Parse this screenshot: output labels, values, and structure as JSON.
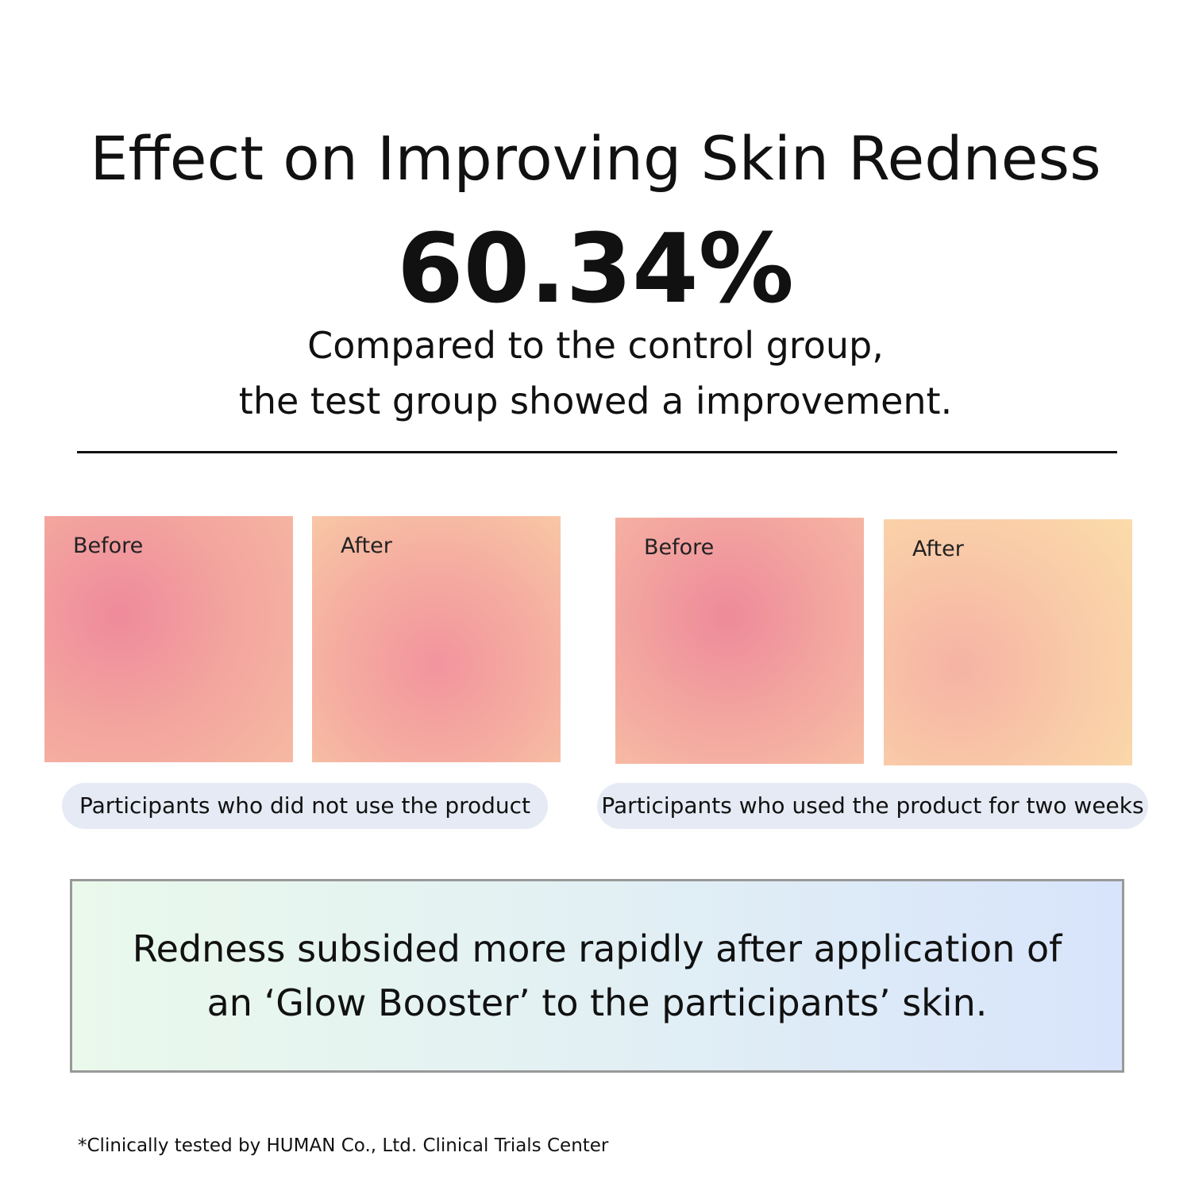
{
  "header": {
    "title": "Effect on Improving Skin Redness",
    "stat": "60.34%",
    "subtitle_lines": [
      "Compared to the control group,",
      "the test group showed a improvement."
    ]
  },
  "groups": [
    {
      "images": [
        {
          "label": "Before"
        },
        {
          "label": "After"
        }
      ],
      "caption": "Participants who did not use the product"
    },
    {
      "images": [
        {
          "label": "Before"
        },
        {
          "label": "After"
        }
      ],
      "caption": "Participants who used the product for two weeks"
    }
  ],
  "summary_lines": [
    "Redness subsided more rapidly after application of",
    "an ‘Glow Booster’ to the participants’ skin."
  ],
  "footnote": "*Clinically tested by HUMAN Co., Ltd. Clinical Trials Center"
}
